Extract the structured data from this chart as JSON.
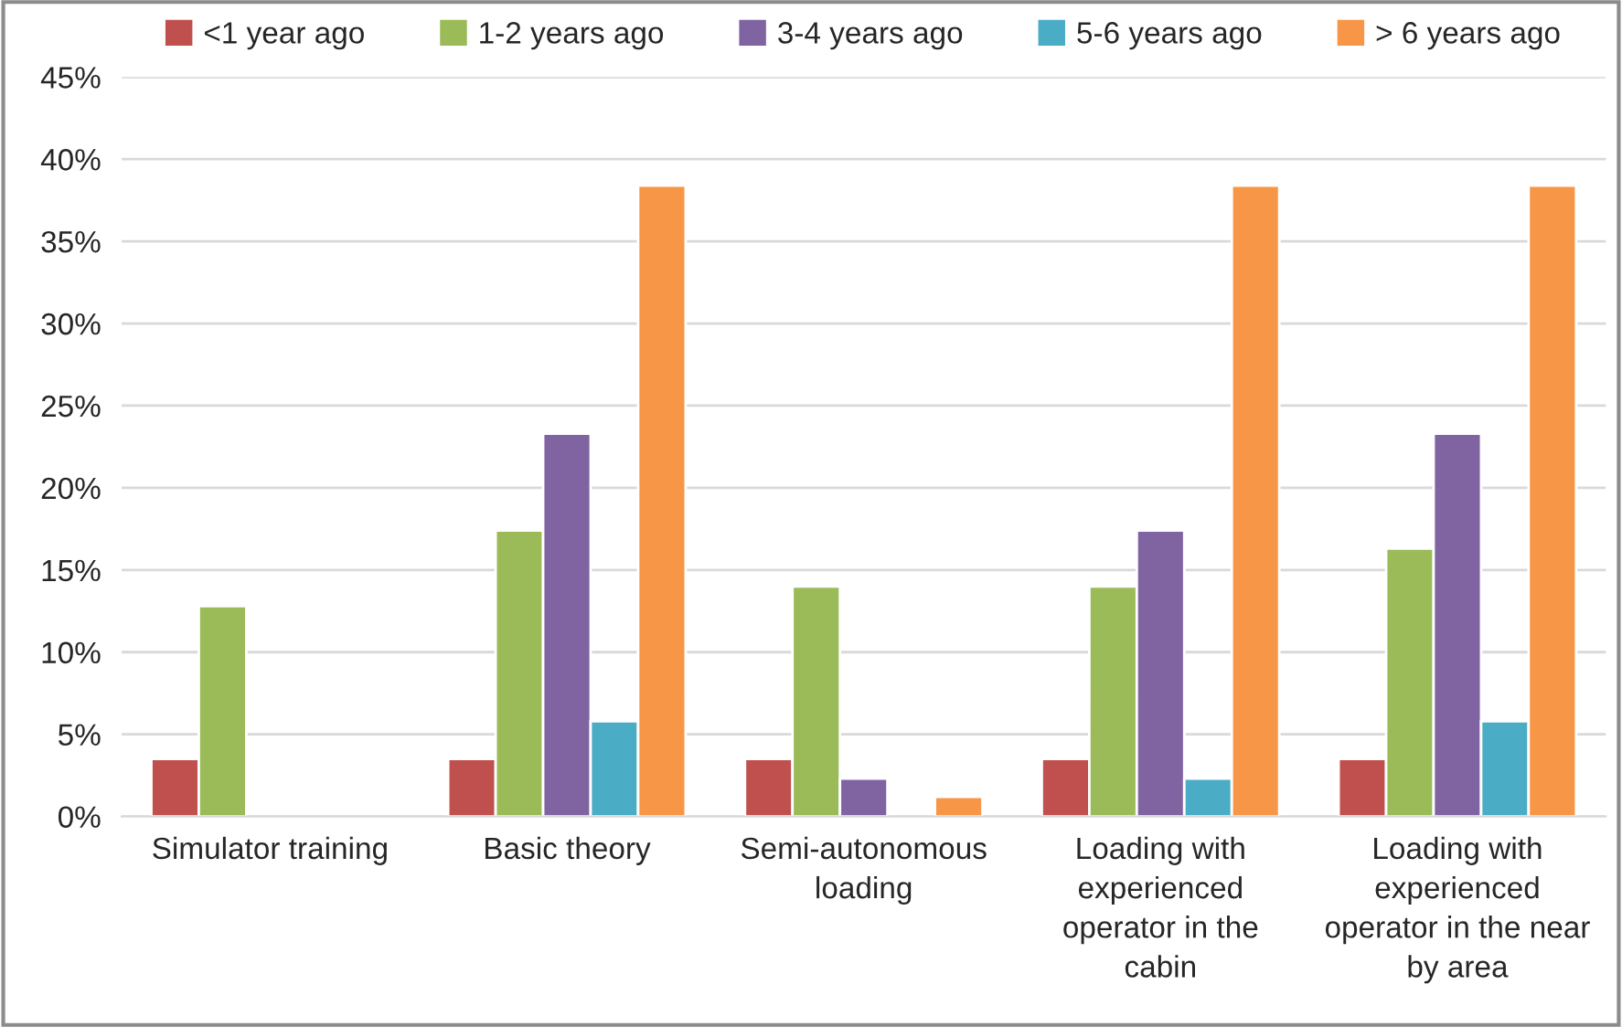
{
  "chart_data": {
    "type": "bar",
    "categories": [
      "Simulator training",
      "Basic theory",
      "Semi-autonomous\nloading",
      "Loading with\nexperienced\noperator in the\ncabin",
      "Loading with\nexperienced\noperator in the near\nby area"
    ],
    "series": [
      {
        "name": "<1 year ago",
        "color": "#c0504d",
        "values": [
          3.5,
          3.5,
          3.5,
          3.5,
          3.5
        ]
      },
      {
        "name": "1-2 years ago",
        "color": "#9bbb59",
        "values": [
          12.8,
          17.4,
          14.0,
          14.0,
          16.3
        ]
      },
      {
        "name": "3-4 years ago",
        "color": "#8064a2",
        "values": [
          null,
          23.3,
          2.3,
          17.4,
          23.3
        ]
      },
      {
        "name": "5-6 years ago",
        "color": "#4bacc6",
        "values": [
          null,
          5.8,
          null,
          2.3,
          5.8
        ]
      },
      {
        "name": "> 6 years ago",
        "color": "#f79646",
        "values": [
          null,
          38.4,
          1.2,
          38.4,
          38.4
        ]
      }
    ],
    "ylim": [
      0,
      45
    ],
    "yticks": [
      {
        "value": 0,
        "label": "0%"
      },
      {
        "value": 5,
        "label": "5%"
      },
      {
        "value": 10,
        "label": "10%"
      },
      {
        "value": 15,
        "label": "15%"
      },
      {
        "value": 20,
        "label": "20%"
      },
      {
        "value": 25,
        "label": "25%"
      },
      {
        "value": 30,
        "label": "30%"
      },
      {
        "value": 35,
        "label": "35%"
      },
      {
        "value": 40,
        "label": "40%"
      },
      {
        "value": 45,
        "label": "45%"
      }
    ],
    "grid": "y",
    "legend": "top"
  }
}
